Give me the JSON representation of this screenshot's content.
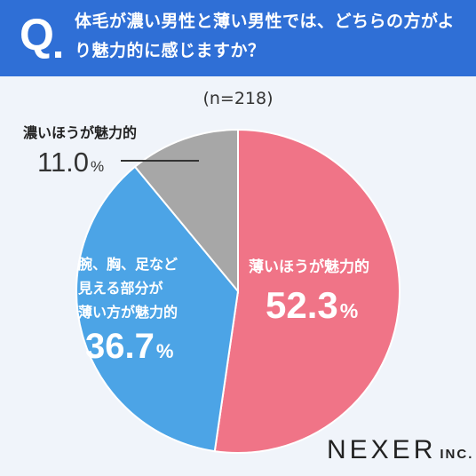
{
  "header": {
    "q_mark": "Q",
    "question": "体毛が濃い男性と薄い男性では、どちらの方がより魅力的に感じますか？"
  },
  "sample_size": "(n=218)",
  "chart_data": {
    "type": "pie",
    "series": [
      {
        "label": "薄いほうが魅力的",
        "value": 52.3,
        "display": "52.3",
        "color": "#f07487"
      },
      {
        "label": "腕、胸、足など見える部分が薄い方が魅力的",
        "label_lines": [
          "腕、胸、足など",
          "見える部分が",
          "薄い方が魅力的"
        ],
        "value": 36.7,
        "display": "36.7",
        "color": "#4ca4e6"
      },
      {
        "label": "濃いほうが魅力的",
        "value": 11.0,
        "display": "11.0",
        "color": "#a7a7a7"
      }
    ],
    "unit": "%"
  },
  "brand": {
    "name": "NEXER",
    "suffix": "INC."
  }
}
